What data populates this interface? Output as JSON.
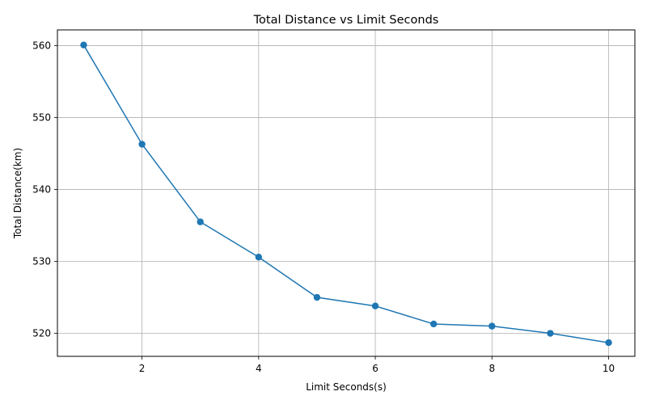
{
  "chart_data": {
    "type": "line",
    "title": "Total Distance vs Limit Seconds",
    "xlabel": "Limit Seconds(s)",
    "ylabel": "Total Distance(km)",
    "x": [
      1,
      2,
      3,
      4,
      5,
      6,
      7,
      8,
      9,
      10
    ],
    "series": [
      {
        "values": [
          560.1,
          546.3,
          535.5,
          530.6,
          525.0,
          523.8,
          521.3,
          521.0,
          520.0,
          518.7
        ],
        "color": "#1f77b4",
        "marker": "circle"
      }
    ],
    "xlim": [
      0.55,
      10.45
    ],
    "ylim": [
      516.8,
      562.2
    ],
    "xticks": [
      2,
      4,
      6,
      8,
      10
    ],
    "yticks": [
      520,
      530,
      540,
      550,
      560
    ],
    "xtick_labels": [
      "2",
      "4",
      "6",
      "8",
      "10"
    ],
    "ytick_labels": [
      "520",
      "530",
      "540",
      "550",
      "560"
    ],
    "grid": true
  }
}
